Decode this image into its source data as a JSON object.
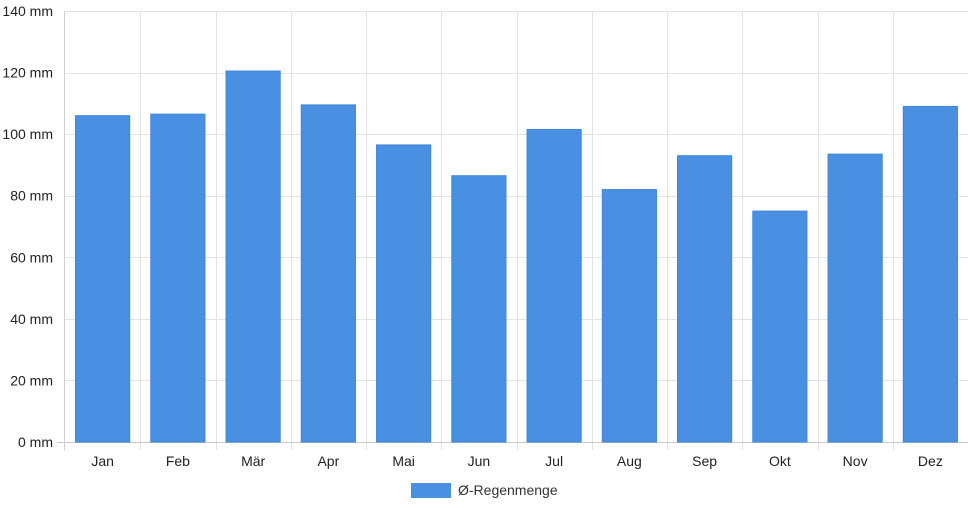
{
  "chart_data": {
    "type": "bar",
    "categories": [
      "Jan",
      "Feb",
      "Mär",
      "Apr",
      "Mai",
      "Jun",
      "Jul",
      "Aug",
      "Sep",
      "Okt",
      "Nov",
      "Dez"
    ],
    "series": [
      {
        "name": "Ø-Regenmenge",
        "values": [
          106,
          106.5,
          120.5,
          109.5,
          96.5,
          86.5,
          101.5,
          82,
          93,
          75,
          93.5,
          109
        ],
        "color": "#4a90e2"
      }
    ],
    "ylim": [
      0,
      140
    ],
    "yticks": [
      0,
      20,
      40,
      60,
      80,
      100,
      120,
      140
    ],
    "ytick_labels": [
      "0 mm",
      "20 mm",
      "40 mm",
      "60 mm",
      "80 mm",
      "100 mm",
      "120 mm",
      "140 mm"
    ],
    "grid": true,
    "legend_position": "bottom-center"
  },
  "legend": {
    "label": "Ø-Regenmenge",
    "color": "#4a90e2"
  }
}
